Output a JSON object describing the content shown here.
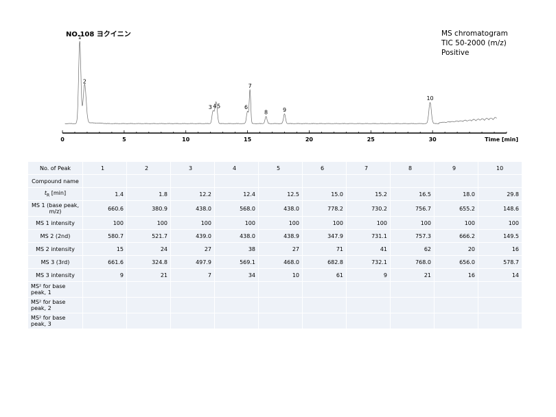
{
  "header": {
    "title": "NO.108 ヨクイニン",
    "info_lines": [
      "MS chromatogram",
      "TIC 50-2000 (m/z)",
      "Positive"
    ]
  },
  "chart_data": {
    "type": "line",
    "title": "NO.108 ヨクイニン",
    "xlabel": "Time [min]",
    "ylabel": "",
    "xlim": [
      0,
      36
    ],
    "ylim": [
      0,
      1.0
    ],
    "x_ticks": [
      0,
      5,
      10,
      15,
      20,
      25,
      30
    ],
    "grid": false,
    "peaks": [
      {
        "label": "1",
        "x": 1.4,
        "y": 0.93
      },
      {
        "label": "2",
        "x": 1.8,
        "y": 0.43
      },
      {
        "label": "3",
        "x": 12.2,
        "y": 0.14
      },
      {
        "label": "4",
        "x": 12.4,
        "y": 0.15
      },
      {
        "label": "5",
        "x": 12.5,
        "y": 0.15
      },
      {
        "label": "6",
        "x": 15.0,
        "y": 0.14
      },
      {
        "label": "7",
        "x": 15.2,
        "y": 0.38
      },
      {
        "label": "8",
        "x": 16.5,
        "y": 0.08
      },
      {
        "label": "9",
        "x": 18.0,
        "y": 0.11
      },
      {
        "label": "10",
        "x": 29.8,
        "y": 0.24
      }
    ]
  },
  "table": {
    "header_label": "No. of Peak",
    "peak_numbers": [
      "1",
      "2",
      "3",
      "4",
      "5",
      "6",
      "7",
      "8",
      "9",
      "10"
    ],
    "rows": [
      {
        "label": "Compound name",
        "values": [
          "",
          "",
          "",
          "",
          "",
          "",
          "",
          "",
          "",
          ""
        ]
      },
      {
        "label": "tR [min]",
        "values": [
          "1.4",
          "1.8",
          "12.2",
          "12.4",
          "12.5",
          "15.0",
          "15.2",
          "16.5",
          "18.0",
          "29.8"
        ]
      },
      {
        "label": "MS 1 (base peak, m/z)",
        "values": [
          "660.6",
          "380.9",
          "438.0",
          "568.0",
          "438.0",
          "778.2",
          "730.2",
          "756.7",
          "655.2",
          "148.6"
        ]
      },
      {
        "label": "MS 1 intensity",
        "values": [
          "100",
          "100",
          "100",
          "100",
          "100",
          "100",
          "100",
          "100",
          "100",
          "100"
        ]
      },
      {
        "label": "MS 2 (2nd)",
        "values": [
          "580.7",
          "521.7",
          "439.0",
          "438.0",
          "438.9",
          "347.9",
          "731.1",
          "757.3",
          "666.2",
          "149.5"
        ]
      },
      {
        "label": "MS 2 intensity",
        "values": [
          "15",
          "24",
          "27",
          "38",
          "27",
          "71",
          "41",
          "62",
          "20",
          "16"
        ]
      },
      {
        "label": "MS 3 (3rd)",
        "values": [
          "661.6",
          "324.8",
          "497.9",
          "569.1",
          "468.0",
          "682.8",
          "732.1",
          "768.0",
          "656.0",
          "578.7"
        ]
      },
      {
        "label": "MS 3 intensity",
        "values": [
          "9",
          "21",
          "7",
          "34",
          "10",
          "61",
          "9",
          "21",
          "16",
          "14"
        ]
      },
      {
        "label": "MS² for base peak, 1",
        "values": [
          "",
          "",
          "",
          "",
          "",
          "",
          "",
          "",
          "",
          ""
        ]
      },
      {
        "label": "MS² for base peak, 2",
        "values": [
          "",
          "",
          "",
          "",
          "",
          "",
          "",
          "",
          "",
          ""
        ]
      },
      {
        "label": "MS² for base peak, 3",
        "values": [
          "",
          "",
          "",
          "",
          "",
          "",
          "",
          "",
          "",
          ""
        ]
      }
    ]
  }
}
